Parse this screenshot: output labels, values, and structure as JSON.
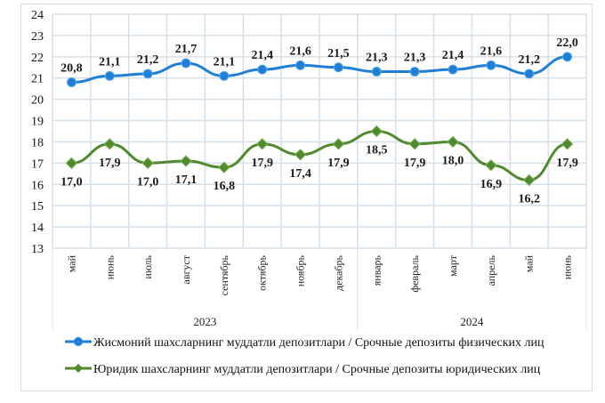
{
  "chart_data": {
    "type": "line",
    "categories": [
      "май",
      "июнь",
      "июль",
      "август",
      "сентябрь",
      "октябрь",
      "ноябрь",
      "декабрь",
      "январь",
      "февраль",
      "март",
      "апрель",
      "май",
      "июнь"
    ],
    "year_groups": [
      {
        "label": "2023",
        "count": 8
      },
      {
        "label": "2024",
        "count": 6
      }
    ],
    "ylim": [
      13,
      24
    ],
    "yticks": [
      13,
      14,
      15,
      16,
      17,
      18,
      19,
      20,
      21,
      22,
      23,
      24
    ],
    "grid": true,
    "legend_position": "bottom",
    "series": [
      {
        "name": "Жисмоний шахсларнинг  муддатли  депозитлари / Срочные депозиты физических лиц",
        "color": "#1f7fd6",
        "marker": "circle",
        "label_position": "above",
        "values": [
          20.8,
          21.1,
          21.2,
          21.7,
          21.1,
          21.4,
          21.6,
          21.5,
          21.3,
          21.3,
          21.4,
          21.6,
          21.2,
          22.0
        ],
        "labels": [
          "20,8",
          "21,1",
          "21,2",
          "21,7",
          "21,1",
          "21,4",
          "21,6",
          "21,5",
          "21,3",
          "21,3",
          "21,4",
          "21,6",
          "21,2",
          "22,0"
        ]
      },
      {
        "name": "Юридик шахсларнинг  муддатли  депозитлари / Срочные депозиты юридических лиц",
        "color": "#4f8a2c",
        "marker": "diamond",
        "label_position": "below",
        "values": [
          17.0,
          17.9,
          17.0,
          17.1,
          16.8,
          17.9,
          17.4,
          17.9,
          18.5,
          17.9,
          18.0,
          16.9,
          16.2,
          17.9
        ],
        "labels": [
          "17,0",
          "17,9",
          "17,0",
          "17,1",
          "16,8",
          "17,9",
          "17,4",
          "17,9",
          "18,5",
          "17,9",
          "18,0",
          "16,9",
          "16,2",
          "17,9"
        ]
      }
    ]
  }
}
